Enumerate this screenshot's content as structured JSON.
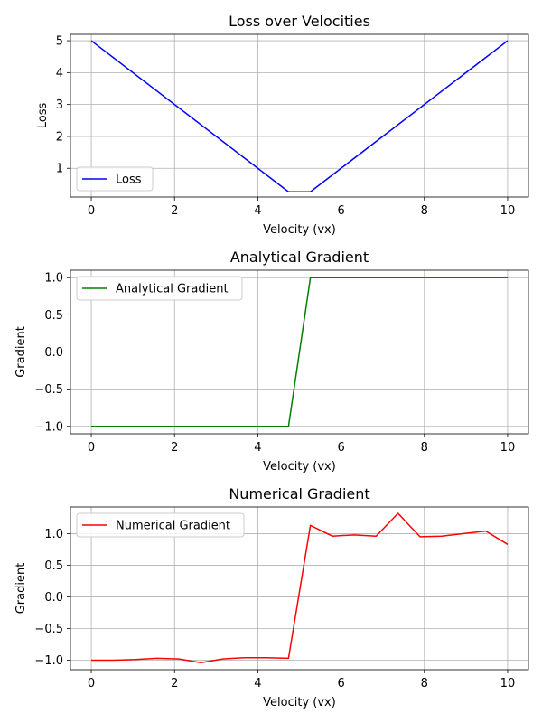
{
  "chart_data": [
    {
      "type": "line",
      "title": "Loss over Velocities",
      "xlabel": "Velocity (vx)",
      "ylabel": "Loss",
      "xlim": [
        -0.5,
        10.5
      ],
      "ylim": [
        0.1,
        5.2
      ],
      "xticks": [
        0,
        2,
        4,
        6,
        8,
        10
      ],
      "yticks": [
        1,
        2,
        3,
        4,
        5
      ],
      "ytick_labels": [
        "1",
        "2",
        "3",
        "4",
        "5"
      ],
      "grid": true,
      "legend_position": "lower-left",
      "series": [
        {
          "name": "Loss",
          "color": "#0000ff",
          "x": [
            0,
            4.737,
            5.263,
            10
          ],
          "y": [
            5.0,
            0.263,
            0.263,
            5.0
          ]
        }
      ]
    },
    {
      "type": "line",
      "title": "Analytical Gradient",
      "xlabel": "Velocity (vx)",
      "ylabel": "Gradient",
      "xlim": [
        -0.5,
        10.5
      ],
      "ylim": [
        -1.1,
        1.1
      ],
      "xticks": [
        0,
        2,
        4,
        6,
        8,
        10
      ],
      "yticks": [
        -1.0,
        -0.5,
        0.0,
        0.5,
        1.0
      ],
      "ytick_labels": [
        "−1.0",
        "−0.5",
        "0.0",
        "0.5",
        "1.0"
      ],
      "grid": true,
      "legend_position": "upper-left",
      "series": [
        {
          "name": "Analytical Gradient",
          "color": "#008000",
          "x": [
            0,
            4.737,
            5.263,
            10
          ],
          "y": [
            -1.0,
            -1.0,
            1.0,
            1.0
          ]
        }
      ]
    },
    {
      "type": "line",
      "title": "Numerical Gradient",
      "xlabel": "Velocity (vx)",
      "ylabel": "Gradient",
      "xlim": [
        -0.5,
        10.5
      ],
      "ylim": [
        -1.15,
        1.42
      ],
      "xticks": [
        0,
        2,
        4,
        6,
        8,
        10
      ],
      "yticks": [
        -1.0,
        -0.5,
        0.0,
        0.5,
        1.0
      ],
      "ytick_labels": [
        "−1.0",
        "−0.5",
        "0.0",
        "0.5",
        "1.0"
      ],
      "grid": true,
      "legend_position": "upper-left",
      "series": [
        {
          "name": "Numerical Gradient",
          "color": "#ff0000",
          "x": [
            0,
            0.526,
            1.053,
            1.579,
            2.105,
            2.632,
            3.158,
            3.684,
            4.211,
            4.737,
            5.263,
            5.789,
            6.316,
            6.842,
            7.368,
            7.895,
            8.421,
            8.947,
            9.474,
            10
          ],
          "y": [
            -1.0,
            -1.0,
            -0.99,
            -0.97,
            -0.98,
            -1.04,
            -0.98,
            -0.96,
            -0.96,
            -0.97,
            1.13,
            0.96,
            0.98,
            0.96,
            1.32,
            0.95,
            0.96,
            1.0,
            1.04,
            0.83
          ]
        }
      ]
    }
  ]
}
